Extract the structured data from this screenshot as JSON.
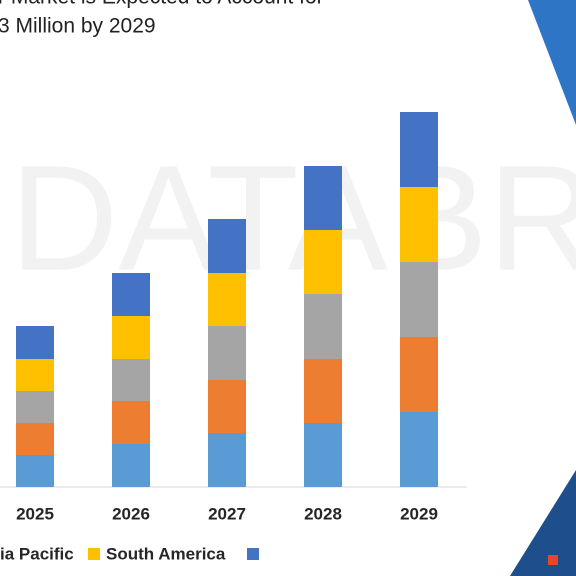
{
  "chart_data": {
    "type": "stacked-bar",
    "title_lines": [
      "r Market is Expected to Account for",
      "3 Million by 2029"
    ],
    "categories": [
      "2025",
      "2026",
      "2027",
      "2028",
      "2029"
    ],
    "series": [
      {
        "color": "#5b9bd5",
        "values": [
          32,
          43,
          54,
          64,
          75
        ]
      },
      {
        "color": "#ed7d31",
        "values": [
          32,
          43,
          53,
          64,
          75
        ]
      },
      {
        "color": "#a5a5a5",
        "values": [
          32,
          42,
          54,
          65,
          75
        ]
      },
      {
        "name": "ia Pacific",
        "color": "#ffc000",
        "values": [
          32,
          43,
          53,
          64,
          75
        ]
      },
      {
        "name": "South America",
        "color": "#ffc000",
        "values": [
          33,
          43,
          54,
          64,
          75
        ]
      }
    ],
    "ylim": [
      0,
      400
    ]
  }
}
